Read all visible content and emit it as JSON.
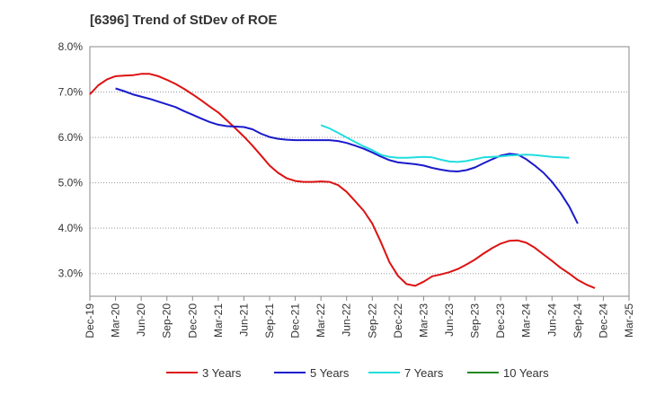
{
  "chart_data": {
    "type": "line",
    "title": "[6396]  Trend of StDev of ROE",
    "xlabel": "",
    "ylabel": "",
    "x_tick_labels": [
      "Dec-19",
      "Mar-20",
      "Jun-20",
      "Sep-20",
      "Dec-20",
      "Mar-21",
      "Jun-21",
      "Sep-21",
      "Dec-21",
      "Mar-22",
      "Jun-22",
      "Sep-22",
      "Dec-22",
      "Mar-23",
      "Jun-23",
      "Sep-23",
      "Dec-23",
      "Mar-24",
      "Jun-24",
      "Sep-24",
      "Dec-24",
      "Mar-25"
    ],
    "y_tick_labels": [
      "3.0%",
      "4.0%",
      "5.0%",
      "6.0%",
      "7.0%",
      "8.0%"
    ],
    "ylim": [
      2.5,
      8.0
    ],
    "y_ticks": [
      3.0,
      4.0,
      5.0,
      6.0,
      7.0,
      8.0
    ],
    "grid": "horizontal dotted",
    "legend_position": "bottom",
    "series": [
      {
        "name": "3 Years",
        "color": "#dd1111",
        "points": [
          [
            0,
            6.95
          ],
          [
            0.33,
            7.15
          ],
          [
            0.67,
            7.28
          ],
          [
            1,
            7.35
          ],
          [
            1.33,
            7.36
          ],
          [
            1.67,
            7.37
          ],
          [
            2,
            7.4
          ],
          [
            2.33,
            7.4
          ],
          [
            2.67,
            7.35
          ],
          [
            3,
            7.27
          ],
          [
            3.33,
            7.18
          ],
          [
            3.67,
            7.07
          ],
          [
            4,
            6.95
          ],
          [
            4.33,
            6.82
          ],
          [
            4.67,
            6.68
          ],
          [
            5,
            6.55
          ],
          [
            5.33,
            6.38
          ],
          [
            5.67,
            6.2
          ],
          [
            6,
            6.02
          ],
          [
            6.33,
            5.82
          ],
          [
            6.67,
            5.6
          ],
          [
            7,
            5.38
          ],
          [
            7.33,
            5.22
          ],
          [
            7.67,
            5.1
          ],
          [
            8,
            5.04
          ],
          [
            8.33,
            5.02
          ],
          [
            8.67,
            5.02
          ],
          [
            9,
            5.03
          ],
          [
            9.33,
            5.02
          ],
          [
            9.67,
            4.95
          ],
          [
            10,
            4.8
          ],
          [
            10.33,
            4.6
          ],
          [
            10.67,
            4.38
          ],
          [
            11,
            4.1
          ],
          [
            11.33,
            3.7
          ],
          [
            11.67,
            3.25
          ],
          [
            12,
            2.95
          ],
          [
            12.33,
            2.77
          ],
          [
            12.67,
            2.73
          ],
          [
            13,
            2.82
          ],
          [
            13.33,
            2.94
          ],
          [
            13.67,
            2.98
          ],
          [
            14,
            3.03
          ],
          [
            14.33,
            3.1
          ],
          [
            14.67,
            3.2
          ],
          [
            15,
            3.31
          ],
          [
            15.33,
            3.44
          ],
          [
            15.67,
            3.56
          ],
          [
            16,
            3.66
          ],
          [
            16.33,
            3.72
          ],
          [
            16.67,
            3.73
          ],
          [
            17,
            3.68
          ],
          [
            17.33,
            3.57
          ],
          [
            17.67,
            3.42
          ],
          [
            18,
            3.28
          ],
          [
            18.33,
            3.13
          ],
          [
            18.67,
            3.0
          ],
          [
            19,
            2.86
          ],
          [
            19.33,
            2.76
          ],
          [
            19.67,
            2.68
          ]
        ]
      },
      {
        "name": "5 Years",
        "color": "#1a1acc",
        "points": [
          [
            1,
            7.08
          ],
          [
            1.33,
            7.02
          ],
          [
            1.67,
            6.95
          ],
          [
            2,
            6.9
          ],
          [
            2.33,
            6.85
          ],
          [
            2.67,
            6.79
          ],
          [
            3,
            6.73
          ],
          [
            3.33,
            6.67
          ],
          [
            3.67,
            6.58
          ],
          [
            4,
            6.5
          ],
          [
            4.33,
            6.42
          ],
          [
            4.67,
            6.34
          ],
          [
            5,
            6.28
          ],
          [
            5.33,
            6.25
          ],
          [
            5.67,
            6.24
          ],
          [
            6,
            6.23
          ],
          [
            6.33,
            6.18
          ],
          [
            6.67,
            6.08
          ],
          [
            7,
            6.01
          ],
          [
            7.33,
            5.97
          ],
          [
            7.67,
            5.95
          ],
          [
            8,
            5.94
          ],
          [
            8.33,
            5.94
          ],
          [
            8.67,
            5.94
          ],
          [
            9,
            5.94
          ],
          [
            9.33,
            5.94
          ],
          [
            9.67,
            5.92
          ],
          [
            10,
            5.88
          ],
          [
            10.33,
            5.82
          ],
          [
            10.67,
            5.75
          ],
          [
            11,
            5.67
          ],
          [
            11.33,
            5.58
          ],
          [
            11.67,
            5.5
          ],
          [
            12,
            5.45
          ],
          [
            12.33,
            5.43
          ],
          [
            12.67,
            5.41
          ],
          [
            13,
            5.38
          ],
          [
            13.33,
            5.33
          ],
          [
            13.67,
            5.29
          ],
          [
            14,
            5.26
          ],
          [
            14.33,
            5.25
          ],
          [
            14.67,
            5.28
          ],
          [
            15,
            5.34
          ],
          [
            15.33,
            5.43
          ],
          [
            15.67,
            5.52
          ],
          [
            16,
            5.6
          ],
          [
            16.33,
            5.64
          ],
          [
            16.67,
            5.62
          ],
          [
            17,
            5.52
          ],
          [
            17.33,
            5.38
          ],
          [
            17.67,
            5.22
          ],
          [
            18,
            5.02
          ],
          [
            18.33,
            4.78
          ],
          [
            18.67,
            4.48
          ],
          [
            19,
            4.1
          ]
        ]
      },
      {
        "name": "7 Years",
        "color": "#22dddd",
        "points": [
          [
            9,
            6.27
          ],
          [
            9.33,
            6.2
          ],
          [
            9.67,
            6.1
          ],
          [
            10,
            6.0
          ],
          [
            10.33,
            5.9
          ],
          [
            10.67,
            5.8
          ],
          [
            11,
            5.72
          ],
          [
            11.33,
            5.62
          ],
          [
            11.67,
            5.57
          ],
          [
            12,
            5.55
          ],
          [
            12.33,
            5.55
          ],
          [
            12.67,
            5.56
          ],
          [
            13,
            5.57
          ],
          [
            13.33,
            5.56
          ],
          [
            13.67,
            5.51
          ],
          [
            14,
            5.47
          ],
          [
            14.33,
            5.46
          ],
          [
            14.67,
            5.48
          ],
          [
            15,
            5.52
          ],
          [
            15.33,
            5.56
          ],
          [
            15.67,
            5.57
          ],
          [
            16,
            5.58
          ],
          [
            16.33,
            5.6
          ],
          [
            16.67,
            5.61
          ],
          [
            17,
            5.62
          ],
          [
            17.33,
            5.61
          ],
          [
            17.67,
            5.59
          ],
          [
            18,
            5.57
          ],
          [
            18.33,
            5.56
          ],
          [
            18.67,
            5.55
          ]
        ]
      },
      {
        "name": "10 Years",
        "color": "#228822",
        "points": []
      }
    ]
  }
}
